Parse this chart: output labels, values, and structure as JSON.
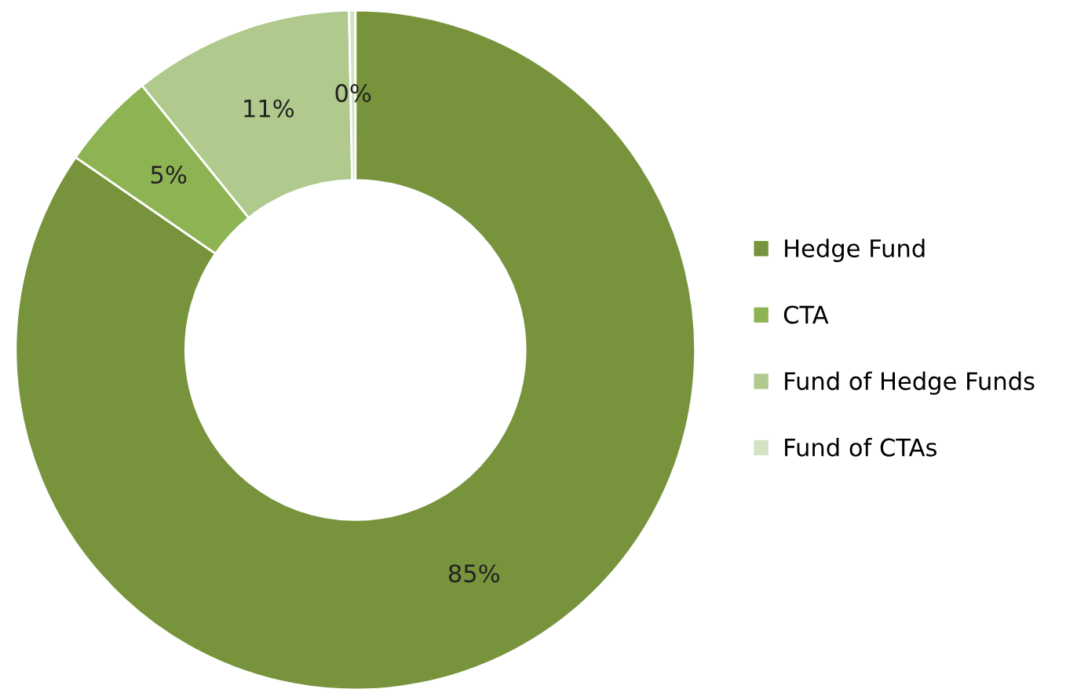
{
  "chart_data": {
    "type": "donut",
    "categories": [
      "Hedge Fund",
      "CTA",
      "Fund of Hedge Funds",
      "Fund of CTAs"
    ],
    "values": [
      84.6,
      4.6,
      10.5,
      0.3
    ],
    "value_labels": [
      "85%",
      "5%",
      "11%",
      "0%"
    ],
    "colors": [
      "#77933c",
      "#8db352",
      "#b0c98c",
      "#d3e2c0"
    ],
    "legend": "right"
  }
}
